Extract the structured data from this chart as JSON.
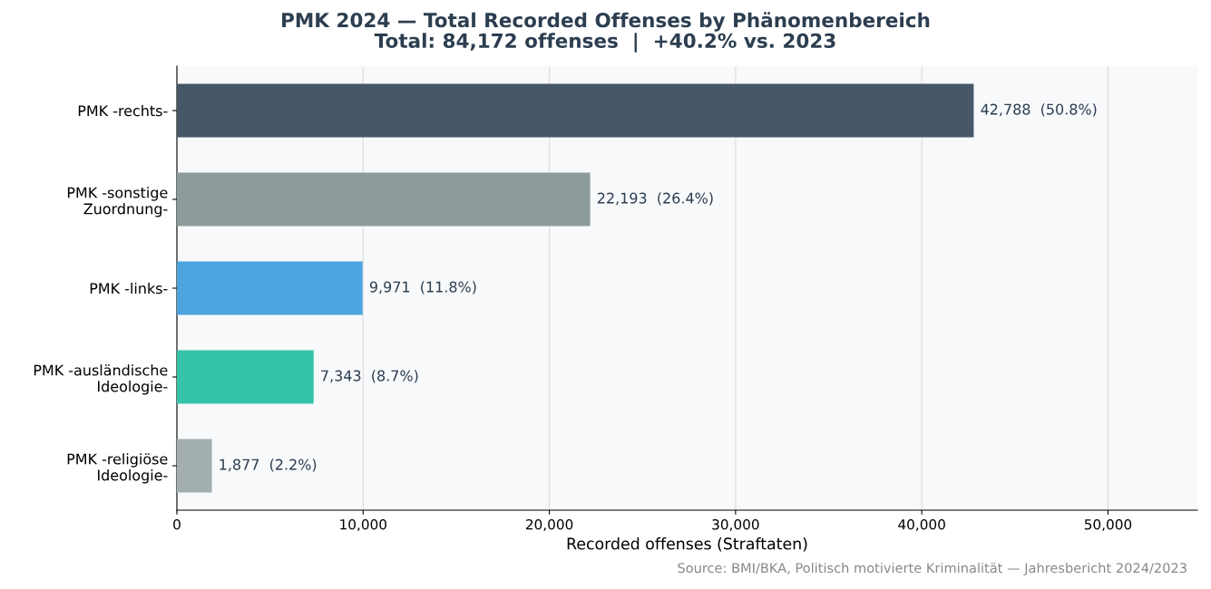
{
  "chart_data": {
    "type": "bar",
    "orientation": "horizontal",
    "title": "PMK 2024 — Total Recorded Offenses by Phänomenbereich",
    "subtitle": "Total: 84,172 offenses  |  +40.2% vs. 2023",
    "xlabel": "Recorded offenses (Straftaten)",
    "categories": [
      "PMK -rechts-",
      "PMK -sonstige\nZuordnung-",
      "PMK -links-",
      "PMK -ausländische\nIdeologie-",
      "PMK -religiöse\nIdeologie-"
    ],
    "values": [
      42788,
      22193,
      9971,
      7343,
      1877
    ],
    "colors": [
      "#465767",
      "#8e9b9b",
      "#4ba4de",
      "#35c3a9",
      "#a2aeaf"
    ],
    "value_labels": [
      "42,788  (50.8%)",
      "22,193  (26.4%)",
      "9,971  (11.8%)",
      "7,343  (8.7%)",
      "1,877  (2.2%)"
    ],
    "xlim": [
      0,
      54800
    ],
    "xticks": [
      {
        "value": 0,
        "label": "0"
      },
      {
        "value": 10000,
        "label": "10,000"
      },
      {
        "value": 20000,
        "label": "20,000"
      },
      {
        "value": 30000,
        "label": "30,000"
      },
      {
        "value": 40000,
        "label": "40,000"
      },
      {
        "value": 50000,
        "label": "50,000"
      }
    ],
    "grid": "x",
    "legend": false,
    "annotations": [
      "Source: BMI/BKA, Politisch motivierte Kriminalität — Jahresbericht 2024/2023"
    ]
  }
}
